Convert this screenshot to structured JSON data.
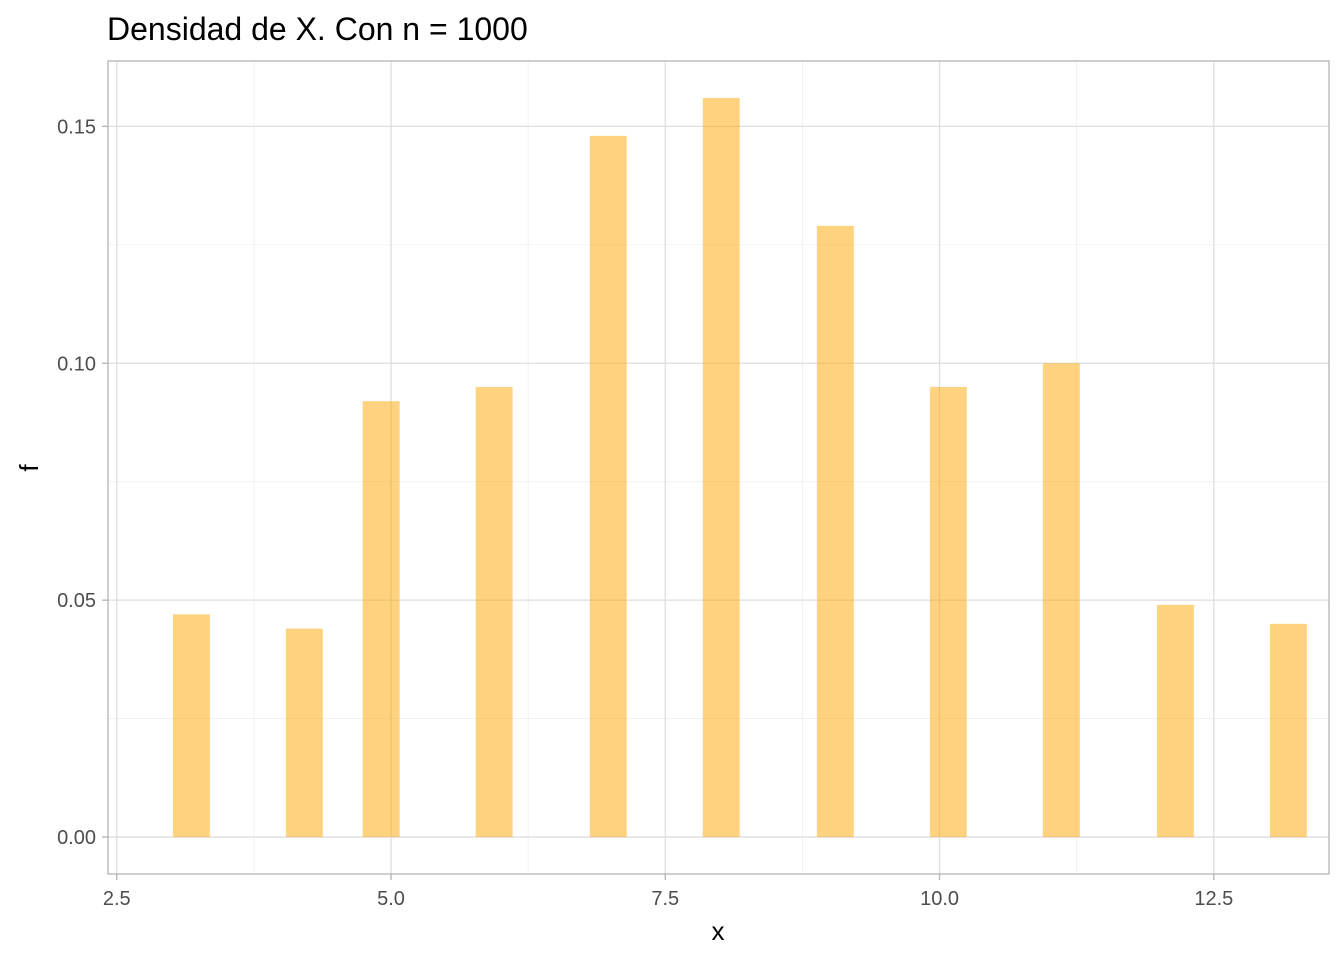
{
  "chart_data": {
    "type": "bar",
    "title": "Densidad de X. Con n = 1000",
    "xlabel": "x",
    "ylabel": "f",
    "xlim": [
      2.42,
      13.55
    ],
    "ylim": [
      -0.0078,
      0.1638
    ],
    "x_ticks": [
      2.5,
      5.0,
      7.5,
      10.0,
      12.5
    ],
    "x_tick_labels": [
      "2.5",
      "5.0",
      "7.5",
      "10.0",
      "12.5"
    ],
    "y_ticks": [
      0.0,
      0.05,
      0.1,
      0.15
    ],
    "y_tick_labels": [
      "0.00",
      "0.05",
      "0.10",
      "0.15"
    ],
    "grid": true,
    "bar_color": "#ffa500",
    "bar_opacity": 0.5,
    "x": [
      3.18,
      4.21,
      4.91,
      5.94,
      6.98,
      8.01,
      9.05,
      10.08,
      11.11,
      12.15,
      13.18
    ],
    "values": [
      0.047,
      0.044,
      0.092,
      0.095,
      0.148,
      0.156,
      0.129,
      0.095,
      0.1,
      0.049,
      0.045
    ]
  }
}
